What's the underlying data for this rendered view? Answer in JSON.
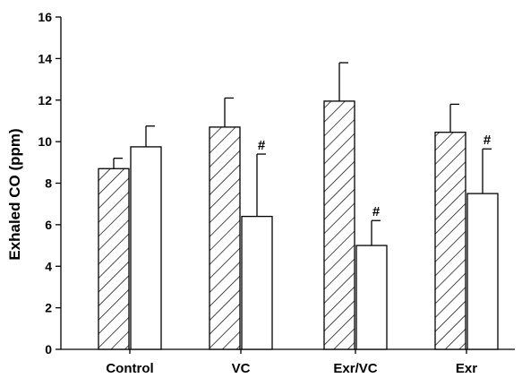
{
  "chart_data": {
    "type": "bar",
    "title": "",
    "xlabel": "",
    "ylabel": "Exhaled CO (ppm)",
    "ylim": [
      0,
      16
    ],
    "yticks": [
      0,
      2,
      4,
      6,
      8,
      10,
      12,
      14,
      16
    ],
    "grid": false,
    "legend": "none",
    "categories": [
      "Control",
      "VC",
      "Exr/VC",
      "Exr"
    ],
    "series": [
      {
        "fill": "hatched",
        "values": [
          8.7,
          10.7,
          11.95,
          10.45
        ],
        "errors": [
          0.5,
          1.4,
          1.85,
          1.35
        ],
        "annotations": [
          "",
          "",
          "",
          ""
        ]
      },
      {
        "fill": "white",
        "values": [
          9.75,
          6.4,
          5.0,
          7.5
        ],
        "errors": [
          1.0,
          3.0,
          1.2,
          2.15
        ],
        "annotations": [
          "",
          "#",
          "#",
          "#"
        ]
      }
    ],
    "colors": {
      "stroke": "#000000",
      "fill": "#ffffff"
    }
  }
}
